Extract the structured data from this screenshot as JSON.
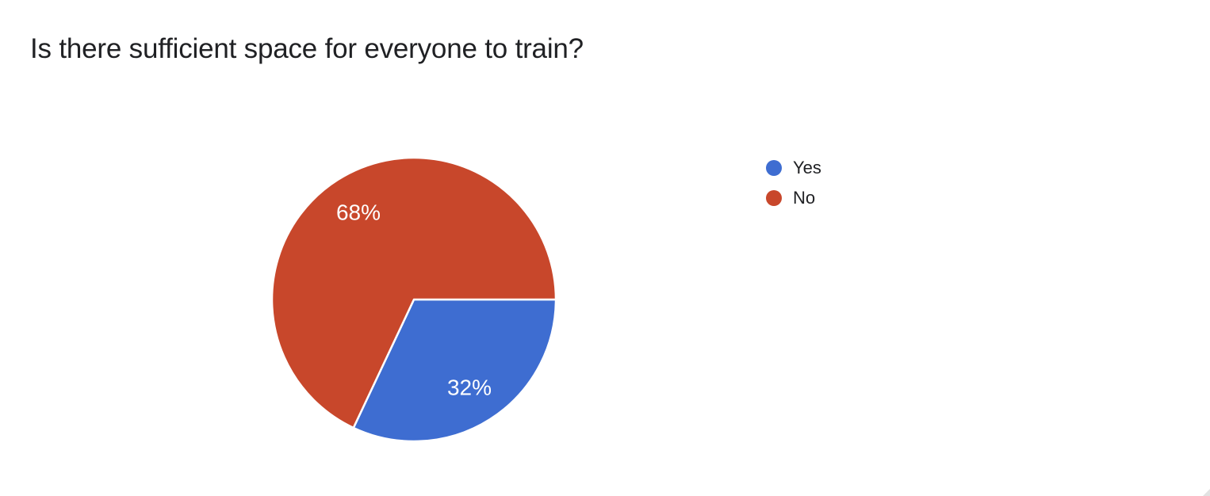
{
  "theme": {
    "background": "#ffffff",
    "title_color": "#202124",
    "legend_text_color": "#202124"
  },
  "question": {
    "title": "Is there sufficient space for everyone to train?"
  },
  "chart_data": {
    "type": "pie",
    "title": "Is there sufficient space for everyone to train?",
    "categories": [
      "Yes",
      "No"
    ],
    "values": [
      32,
      68
    ],
    "unit": "%",
    "slice_labels": [
      "32%",
      "68%"
    ],
    "colors": [
      "#3e6dd1",
      "#c8472b"
    ],
    "slice_label_color": "#ffffff",
    "slice_border_color": "#ffffff",
    "start_angle_deg": 0,
    "direction": "clockwise",
    "legend_position": "right",
    "legend": [
      {
        "label": "Yes",
        "color": "#3e6dd1"
      },
      {
        "label": "No",
        "color": "#c8472b"
      }
    ]
  }
}
